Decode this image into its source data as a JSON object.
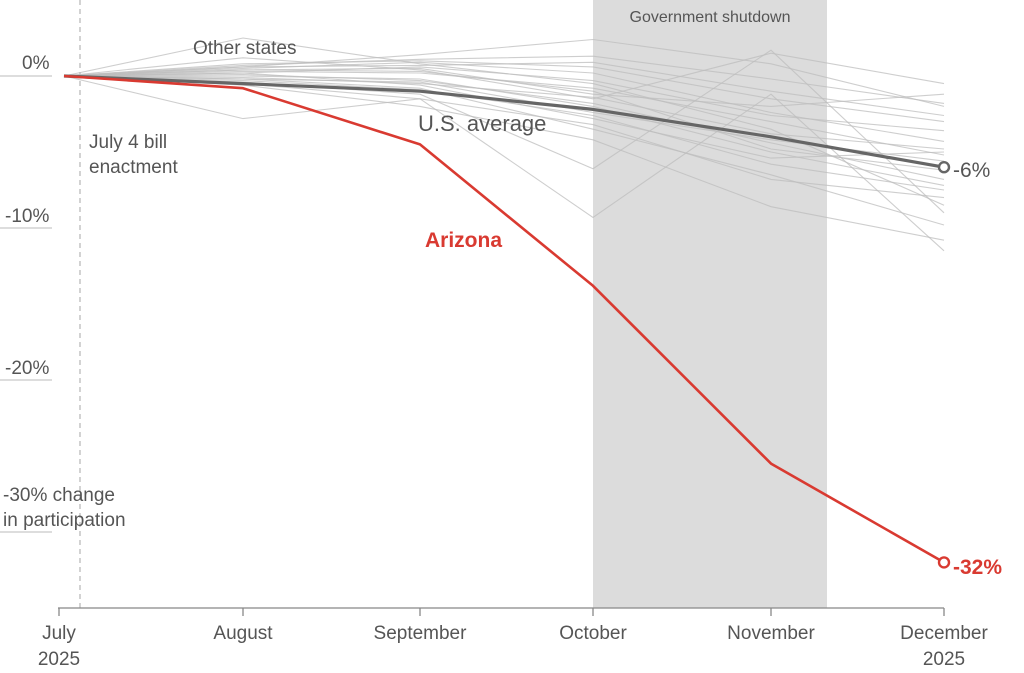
{
  "chart_data": {
    "type": "line",
    "x": [
      "July 2025",
      "August",
      "September",
      "October",
      "November",
      "December 2025"
    ],
    "x_tick_labels": [
      {
        "line1": "July",
        "line2": "2025"
      },
      {
        "line1": "August",
        "line2": ""
      },
      {
        "line1": "September",
        "line2": ""
      },
      {
        "line1": "October",
        "line2": ""
      },
      {
        "line1": "November",
        "line2": ""
      },
      {
        "line1": "December",
        "line2": "2025"
      }
    ],
    "ylim": [
      -35,
      4
    ],
    "y_ticks": [
      0,
      -10,
      -20,
      -30
    ],
    "y_tick_labels": [
      "0%",
      "-10%",
      "-20%",
      "-30% change"
    ],
    "y_axis_note": "in participation",
    "series": [
      {
        "name": "U.S. average",
        "values": [
          0,
          -0.5,
          -1.0,
          -2.2,
          -4.0,
          -6.0
        ],
        "end_label": "-6%",
        "color": "#666666"
      },
      {
        "name": "Arizona",
        "values": [
          0,
          -0.8,
          -4.5,
          -13.8,
          -25.5,
          -32.0
        ],
        "end_label": "-32%",
        "color": "#d93a31"
      }
    ],
    "other_states_label": "Other states",
    "other_states": [
      [
        0,
        2.5,
        0.8,
        -0.5,
        -3.5,
        -8.5
      ],
      [
        0,
        1.2,
        0.4,
        -1.5,
        1.5,
        -0.5
      ],
      [
        0,
        0.6,
        1.4,
        2.4,
        0.8,
        -2.0
      ],
      [
        0,
        -0.4,
        -1.2,
        -6.1,
        1.7,
        -9.0
      ],
      [
        0,
        0.2,
        -0.6,
        -2.8,
        -5.4,
        -5.0
      ],
      [
        0,
        0.4,
        0.5,
        -1.2,
        -2.0,
        -1.2
      ],
      [
        0,
        -0.2,
        -0.8,
        -3.5,
        -6.5,
        -9.8
      ],
      [
        0,
        -2.8,
        -1.5,
        -9.3,
        -1.2,
        -11.5
      ],
      [
        0,
        0.8,
        1.0,
        0.6,
        -1.5,
        -3.0
      ],
      [
        0,
        -0.6,
        -2.0,
        -4.2,
        -8.6,
        -10.8
      ],
      [
        0,
        0.3,
        0.2,
        -0.8,
        -3.0,
        -5.2
      ],
      [
        0,
        0.1,
        -0.3,
        -1.8,
        -4.4,
        -6.8
      ],
      [
        0,
        0.5,
        0.9,
        0.2,
        -2.4,
        -4.3
      ],
      [
        0,
        -0.3,
        -0.9,
        -2.6,
        -5.8,
        -7.5
      ],
      [
        0,
        0.7,
        1.1,
        1.3,
        -0.2,
        -1.8
      ],
      [
        0,
        -0.1,
        -0.5,
        -1.4,
        -3.8,
        -4.8
      ],
      [
        0,
        0.2,
        0.6,
        -0.3,
        -2.6,
        -3.6
      ],
      [
        0,
        -0.5,
        -1.5,
        -3.2,
        -6.8,
        -8.0
      ],
      [
        0,
        0.4,
        0.3,
        -1.0,
        -4.8,
        -6.2
      ],
      [
        0,
        0.0,
        -0.2,
        -2.0,
        -5.0,
        -7.2
      ],
      [
        0,
        0.6,
        0.7,
        0.9,
        -1.0,
        -2.6
      ],
      [
        0,
        -0.2,
        -0.4,
        -2.4,
        -4.2,
        -5.6
      ]
    ],
    "vline": {
      "position": "July 4",
      "label_line1": "July 4 bill",
      "label_line2": "enactment"
    },
    "shaded_region": {
      "start": "October",
      "end": "Nov 12",
      "label": "Government shutdown",
      "color": "#dcdcdc"
    },
    "grid": false,
    "legend": "none (direct labels)"
  }
}
